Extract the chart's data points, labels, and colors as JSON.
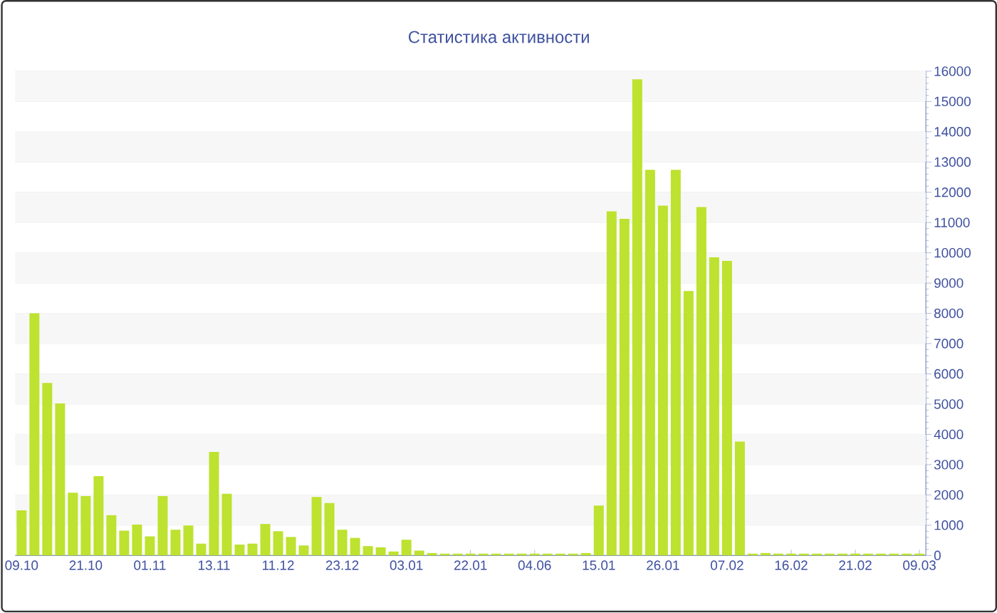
{
  "chart_data": {
    "type": "bar",
    "title": "Статистика активности",
    "categories": [
      "09.10",
      null,
      null,
      null,
      null,
      "21.10",
      null,
      null,
      null,
      null,
      "01.11",
      null,
      null,
      null,
      null,
      "13.11",
      null,
      null,
      null,
      null,
      "11.12",
      null,
      null,
      null,
      null,
      "23.12",
      null,
      null,
      null,
      null,
      "03.01",
      null,
      null,
      null,
      null,
      "22.01",
      null,
      null,
      null,
      null,
      "04.06",
      null,
      null,
      null,
      null,
      "15.01",
      null,
      null,
      null,
      null,
      "26.01",
      null,
      null,
      null,
      null,
      "07.02",
      null,
      null,
      null,
      null,
      "16.02",
      null,
      null,
      null,
      null,
      "21.02",
      null,
      null,
      null,
      null,
      "09.03"
    ],
    "values": [
      1490,
      8000,
      5700,
      5020,
      2070,
      1960,
      2620,
      1330,
      820,
      1020,
      630,
      1960,
      850,
      990,
      390,
      3420,
      2040,
      360,
      390,
      1040,
      800,
      610,
      330,
      1930,
      1730,
      850,
      580,
      310,
      270,
      130,
      520,
      160,
      80,
      60,
      60,
      60,
      60,
      60,
      60,
      60,
      60,
      60,
      60,
      60,
      80,
      1650,
      11370,
      11120,
      15730,
      12740,
      11560,
      12740,
      8740,
      11510,
      9850,
      9730,
      3760,
      60,
      80,
      60,
      60,
      60,
      60,
      60,
      60,
      60,
      60,
      60,
      60,
      60,
      60
    ],
    "color": "#bde22f",
    "ylim": [
      0,
      16000
    ],
    "yticks": [
      0,
      1000,
      2000,
      3000,
      4000,
      5000,
      6000,
      7000,
      8000,
      9000,
      10000,
      11000,
      12000,
      13000,
      14000,
      15000,
      16000
    ],
    "grid": "y"
  }
}
